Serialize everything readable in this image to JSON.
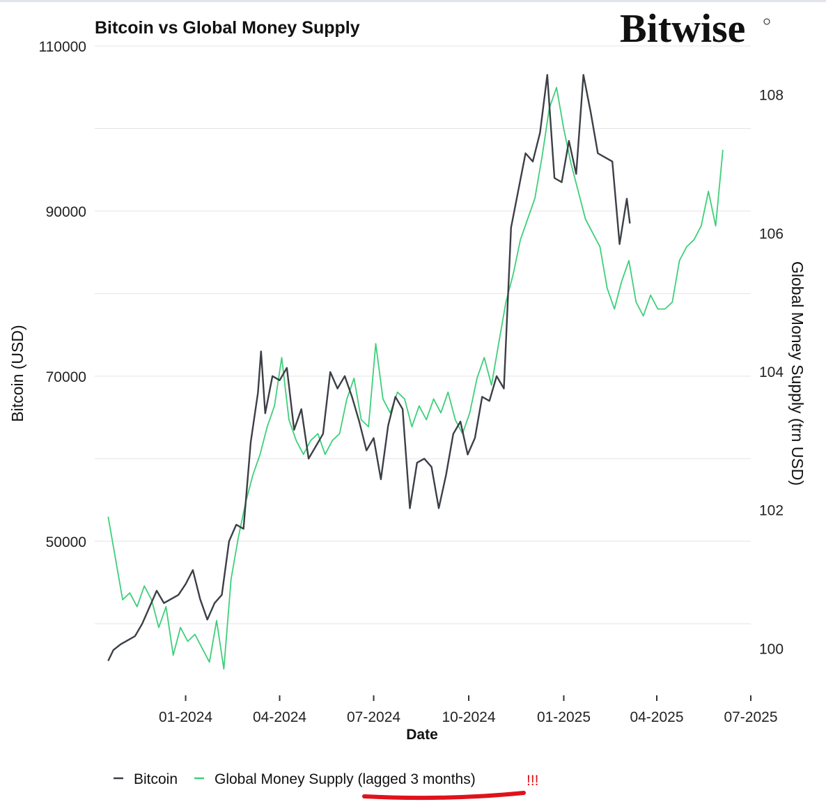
{
  "chart_data": {
    "type": "line",
    "title": "Bitcoin vs Global Money Supply",
    "logo": "Bitwise",
    "xlabel": "Date",
    "ylabel_left": "Bitcoin (USD)",
    "ylabel_right": "Global Money Supply (trn USD)",
    "x_ticks": [
      "01-2024",
      "04-2024",
      "07-2024",
      "10-2024",
      "01-2025",
      "04-2025",
      "07-2025"
    ],
    "y_left_ticks": [
      "50000",
      "70000",
      "90000",
      "110000"
    ],
    "y_right_ticks": [
      "100",
      "102",
      "104",
      "106",
      "108"
    ],
    "y_left_range": [
      32000,
      110000
    ],
    "y_right_range": [
      99.4,
      108.7
    ],
    "x_range": [
      "2023-10-05",
      "2025-07-01"
    ],
    "grid": true,
    "legend_position": "bottom",
    "legend": [
      "Bitcoin",
      "Global Money Supply (lagged 3 months)"
    ],
    "annotation": "!!!",
    "colors": {
      "bitcoin": "#3c3f46",
      "money_supply": "#3ecf7a",
      "annotation": "#e0121a",
      "grid": "#e4e4e4"
    },
    "series": [
      {
        "name": "Bitcoin",
        "axis": "left",
        "points": [
          [
            "2023-10-18",
            35500
          ],
          [
            "2023-10-23",
            36800
          ],
          [
            "2023-10-30",
            37500
          ],
          [
            "2023-11-06",
            38000
          ],
          [
            "2023-11-13",
            38500
          ],
          [
            "2023-11-20",
            40000
          ],
          [
            "2023-11-27",
            42000
          ],
          [
            "2023-12-04",
            44000
          ],
          [
            "2023-12-11",
            42500
          ],
          [
            "2023-12-18",
            43000
          ],
          [
            "2023-12-25",
            43500
          ],
          [
            "2024-01-01",
            44800
          ],
          [
            "2024-01-08",
            46500
          ],
          [
            "2024-01-15",
            43000
          ],
          [
            "2024-01-22",
            40500
          ],
          [
            "2024-01-29",
            42500
          ],
          [
            "2024-02-05",
            43500
          ],
          [
            "2024-02-12",
            50000
          ],
          [
            "2024-02-19",
            52000
          ],
          [
            "2024-02-26",
            51500
          ],
          [
            "2024-03-04",
            62000
          ],
          [
            "2024-03-11",
            68000
          ],
          [
            "2024-03-14",
            73000
          ],
          [
            "2024-03-18",
            65500
          ],
          [
            "2024-03-25",
            70000
          ],
          [
            "2024-04-01",
            69500
          ],
          [
            "2024-04-08",
            71000
          ],
          [
            "2024-04-15",
            63500
          ],
          [
            "2024-04-22",
            66000
          ],
          [
            "2024-04-29",
            60000
          ],
          [
            "2024-05-06",
            61500
          ],
          [
            "2024-05-13",
            63000
          ],
          [
            "2024-05-20",
            70500
          ],
          [
            "2024-05-27",
            68500
          ],
          [
            "2024-06-03",
            70000
          ],
          [
            "2024-06-10",
            67500
          ],
          [
            "2024-06-17",
            64500
          ],
          [
            "2024-06-24",
            61000
          ],
          [
            "2024-07-01",
            62500
          ],
          [
            "2024-07-08",
            57500
          ],
          [
            "2024-07-15",
            64000
          ],
          [
            "2024-07-22",
            67500
          ],
          [
            "2024-07-29",
            66000
          ],
          [
            "2024-08-05",
            54000
          ],
          [
            "2024-08-12",
            59500
          ],
          [
            "2024-08-19",
            60000
          ],
          [
            "2024-08-26",
            59000
          ],
          [
            "2024-09-02",
            54000
          ],
          [
            "2024-09-09",
            58000
          ],
          [
            "2024-09-16",
            63000
          ],
          [
            "2024-09-23",
            64500
          ],
          [
            "2024-09-30",
            60500
          ],
          [
            "2024-10-07",
            62500
          ],
          [
            "2024-10-14",
            67500
          ],
          [
            "2024-10-21",
            67000
          ],
          [
            "2024-10-28",
            70000
          ],
          [
            "2024-11-04",
            68500
          ],
          [
            "2024-11-11",
            88000
          ],
          [
            "2024-11-18",
            92500
          ],
          [
            "2024-11-25",
            97000
          ],
          [
            "2024-12-02",
            96000
          ],
          [
            "2024-12-09",
            99500
          ],
          [
            "2024-12-16",
            106500
          ],
          [
            "2024-12-23",
            94000
          ],
          [
            "2024-12-30",
            93500
          ],
          [
            "2025-01-06",
            98500
          ],
          [
            "2025-01-13",
            94500
          ],
          [
            "2025-01-20",
            106500
          ],
          [
            "2025-01-27",
            102000
          ],
          [
            "2025-02-03",
            97000
          ],
          [
            "2025-02-10",
            96500
          ],
          [
            "2025-02-17",
            96000
          ],
          [
            "2025-02-24",
            86000
          ],
          [
            "2025-03-03",
            91500
          ],
          [
            "2025-03-06",
            88500
          ]
        ]
      },
      {
        "name": "Global Money Supply (lagged 3 months)",
        "axis": "right",
        "points": [
          [
            "2023-10-18",
            101.9
          ],
          [
            "2023-10-25",
            101.3
          ],
          [
            "2023-11-01",
            100.7
          ],
          [
            "2023-11-08",
            100.8
          ],
          [
            "2023-11-15",
            100.6
          ],
          [
            "2023-11-22",
            100.9
          ],
          [
            "2023-11-29",
            100.7
          ],
          [
            "2023-12-06",
            100.3
          ],
          [
            "2023-12-13",
            100.6
          ],
          [
            "2023-12-20",
            99.9
          ],
          [
            "2023-12-27",
            100.3
          ],
          [
            "2024-01-03",
            100.1
          ],
          [
            "2024-01-10",
            100.2
          ],
          [
            "2024-01-17",
            100.0
          ],
          [
            "2024-01-24",
            99.8
          ],
          [
            "2024-01-31",
            100.4
          ],
          [
            "2024-02-07",
            99.7
          ],
          [
            "2024-02-14",
            101.0
          ],
          [
            "2024-02-21",
            101.6
          ],
          [
            "2024-02-28",
            102.1
          ],
          [
            "2024-03-06",
            102.5
          ],
          [
            "2024-03-13",
            102.8
          ],
          [
            "2024-03-20",
            103.2
          ],
          [
            "2024-03-27",
            103.5
          ],
          [
            "2024-04-03",
            104.2
          ],
          [
            "2024-04-10",
            103.3
          ],
          [
            "2024-04-17",
            103.0
          ],
          [
            "2024-04-24",
            102.8
          ],
          [
            "2024-05-01",
            103.0
          ],
          [
            "2024-05-08",
            103.1
          ],
          [
            "2024-05-15",
            102.8
          ],
          [
            "2024-05-22",
            103.0
          ],
          [
            "2024-05-29",
            103.1
          ],
          [
            "2024-06-05",
            103.6
          ],
          [
            "2024-06-12",
            103.9
          ],
          [
            "2024-06-19",
            103.3
          ],
          [
            "2024-06-26",
            103.2
          ],
          [
            "2024-07-03",
            104.4
          ],
          [
            "2024-07-10",
            103.6
          ],
          [
            "2024-07-17",
            103.4
          ],
          [
            "2024-07-24",
            103.7
          ],
          [
            "2024-07-31",
            103.6
          ],
          [
            "2024-08-07",
            103.2
          ],
          [
            "2024-08-14",
            103.5
          ],
          [
            "2024-08-21",
            103.3
          ],
          [
            "2024-08-28",
            103.6
          ],
          [
            "2024-09-04",
            103.4
          ],
          [
            "2024-09-11",
            103.7
          ],
          [
            "2024-09-18",
            103.3
          ],
          [
            "2024-09-25",
            103.1
          ],
          [
            "2024-10-02",
            103.4
          ],
          [
            "2024-10-09",
            103.9
          ],
          [
            "2024-10-16",
            104.2
          ],
          [
            "2024-10-23",
            103.8
          ],
          [
            "2024-10-30",
            104.4
          ],
          [
            "2024-11-06",
            105.0
          ],
          [
            "2024-11-13",
            105.4
          ],
          [
            "2024-11-20",
            105.9
          ],
          [
            "2024-11-27",
            106.2
          ],
          [
            "2024-12-04",
            106.5
          ],
          [
            "2024-12-11",
            107.1
          ],
          [
            "2024-12-18",
            107.8
          ],
          [
            "2024-12-25",
            108.1
          ],
          [
            "2025-01-01",
            107.5
          ],
          [
            "2025-01-08",
            107.0
          ],
          [
            "2025-01-15",
            106.6
          ],
          [
            "2025-01-22",
            106.2
          ],
          [
            "2025-01-29",
            106.0
          ],
          [
            "2025-02-05",
            105.8
          ],
          [
            "2025-02-12",
            105.2
          ],
          [
            "2025-02-19",
            104.9
          ],
          [
            "2025-02-26",
            105.3
          ],
          [
            "2025-03-05",
            105.6
          ],
          [
            "2025-03-12",
            105.0
          ],
          [
            "2025-03-19",
            104.8
          ],
          [
            "2025-03-26",
            105.1
          ],
          [
            "2025-04-02",
            104.9
          ],
          [
            "2025-04-09",
            104.9
          ],
          [
            "2025-04-16",
            105.0
          ],
          [
            "2025-04-23",
            105.6
          ],
          [
            "2025-04-30",
            105.8
          ],
          [
            "2025-05-07",
            105.9
          ],
          [
            "2025-05-14",
            106.1
          ],
          [
            "2025-05-21",
            106.6
          ],
          [
            "2025-05-28",
            106.1
          ],
          [
            "2025-06-04",
            107.2
          ]
        ]
      }
    ]
  }
}
